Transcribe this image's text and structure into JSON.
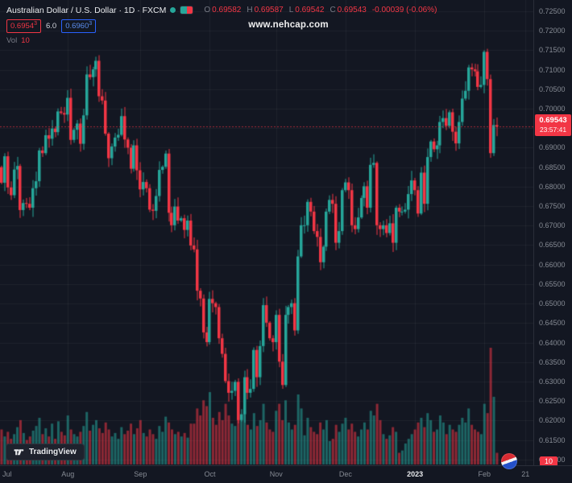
{
  "legend": {
    "title": "Australian Dollar / U.S. Dollar · 1D · FXCM",
    "o_label": "O",
    "o": "0.69582",
    "h_label": "H",
    "h": "0.69587",
    "l_label": "L",
    "l": "0.69542",
    "c_label": "C",
    "c": "0.69543",
    "change": "-0.00039 (-0.06%)",
    "bid": "0.6954",
    "bid_sup": "3",
    "spread": "6.0",
    "ask": "0.6960",
    "ask_sup": "3",
    "vol_label": "Vol",
    "vol_value": "10"
  },
  "ui": {
    "watermark": "www.nehcap.com",
    "tv_label": "TradingView",
    "price_badge": {
      "price": "0.69543",
      "countdown": "23:57:41"
    },
    "volume_badge": "10"
  },
  "colors": {
    "up": "#26a69a",
    "down": "#f23645",
    "bg": "#131722",
    "axis_text": "#868b94",
    "accent_blue": "#2962ff",
    "grid": "rgba(255,255,255,0.05)"
  },
  "chart_data": {
    "type": "candlestick",
    "title": "AUD/USD · 1D · FXCM with volume",
    "price_axis_labels": [
      "0.72500",
      "0.72000",
      "0.71500",
      "0.71000",
      "0.70500",
      "0.70000",
      "0.69500",
      "0.69000",
      "0.68500",
      "0.68000",
      "0.67500",
      "0.67000",
      "0.66500",
      "0.66000",
      "0.65500",
      "0.65000",
      "0.64500",
      "0.64000",
      "0.63500",
      "0.63000",
      "0.62500",
      "0.62000",
      "0.61500",
      "0.61000"
    ],
    "y_range": [
      0.6085,
      0.7279
    ],
    "time_labels": [
      {
        "t": "Jul",
        "i": 0
      },
      {
        "t": "Aug",
        "i": 21
      },
      {
        "t": "Sep",
        "i": 44
      },
      {
        "t": "Oct",
        "i": 66
      },
      {
        "t": "Nov",
        "i": 87
      },
      {
        "t": "Dec",
        "i": 109
      },
      {
        "t": "2023",
        "i": 131,
        "bold": true
      },
      {
        "t": "Feb",
        "i": 153
      },
      {
        "t": "21",
        "i": 166
      }
    ],
    "total_slots": 169,
    "first_open": 0.685,
    "closes": [
      0.681,
      0.6878,
      0.6798,
      0.6778,
      0.6844,
      0.6853,
      0.674,
      0.6758,
      0.6756,
      0.6746,
      0.6796,
      0.6814,
      0.6893,
      0.6886,
      0.6932,
      0.6923,
      0.6949,
      0.694,
      0.6993,
      0.6989,
      0.6985,
      0.7028,
      0.692,
      0.6946,
      0.6962,
      0.691,
      0.6983,
      0.7088,
      0.7081,
      0.7101,
      0.7123,
      0.7032,
      0.7021,
      0.6936,
      0.6873,
      0.6903,
      0.6926,
      0.6933,
      0.6981,
      0.6921,
      0.69,
      0.6846,
      0.6906,
      0.6842,
      0.6793,
      0.6812,
      0.6796,
      0.6741,
      0.6738,
      0.6776,
      0.6843,
      0.6851,
      0.6885,
      0.6733,
      0.6701,
      0.6749,
      0.6713,
      0.6719,
      0.6689,
      0.6713,
      0.6649,
      0.6639,
      0.6533,
      0.6513,
      0.6426,
      0.6401,
      0.6512,
      0.6501,
      0.6491,
      0.6411,
      0.6371,
      0.6301,
      0.6271,
      0.6276,
      0.6299,
      0.6201,
      0.6216,
      0.6311,
      0.6271,
      0.6281,
      0.6381,
      0.6311,
      0.6391,
      0.6496,
      0.6451,
      0.6411,
      0.6401,
      0.6471,
      0.6351,
      0.6291,
      0.6471,
      0.6491,
      0.6501,
      0.6431,
      0.6621,
      0.6701,
      0.6701,
      0.6761,
      0.6736,
      0.6686,
      0.6671,
      0.6606,
      0.6646,
      0.6736,
      0.6766,
      0.6756,
      0.6656,
      0.6686,
      0.6791,
      0.6811,
      0.6791,
      0.6701,
      0.6691,
      0.6721,
      0.6771,
      0.6801,
      0.6746,
      0.6856,
      0.6861,
      0.6701,
      0.6691,
      0.6701,
      0.6681,
      0.6706,
      0.6656,
      0.6746,
      0.6736,
      0.6736,
      0.6741,
      0.6781,
      0.6816,
      0.6791,
      0.6731,
      0.6836,
      0.6756,
      0.6876,
      0.6916,
      0.6896,
      0.6906,
      0.6966,
      0.6976,
      0.6956,
      0.6991,
      0.6941,
      0.6911,
      0.6966,
      0.7026,
      0.7046,
      0.7106,
      0.7101,
      0.7096,
      0.7056,
      0.7061,
      0.7146,
      0.7076,
      0.6886,
      0.6958,
      0.69543
    ],
    "volumes": [
      30,
      24,
      28,
      22,
      26,
      32,
      38,
      27,
      21,
      24,
      29,
      33,
      40,
      26,
      31,
      24,
      35,
      22,
      37,
      28,
      25,
      42,
      30,
      26,
      24,
      28,
      33,
      45,
      29,
      34,
      38,
      31,
      27,
      36,
      30,
      24,
      27,
      22,
      32,
      26,
      29,
      35,
      26,
      31,
      38,
      27,
      24,
      30,
      26,
      22,
      33,
      28,
      41,
      36,
      30,
      26,
      28,
      24,
      27,
      23,
      35,
      35,
      48,
      42,
      55,
      50,
      62,
      40,
      34,
      45,
      38,
      52,
      42,
      35,
      33,
      58,
      38,
      46,
      34,
      30,
      44,
      33,
      38,
      52,
      36,
      30,
      28,
      46,
      52,
      38,
      55,
      36,
      30,
      34,
      60,
      48,
      25,
      40,
      32,
      28,
      26,
      36,
      30,
      38,
      20,
      22,
      34,
      28,
      35,
      40,
      30,
      35,
      28,
      24,
      30,
      36,
      30,
      46,
      42,
      52,
      38,
      26,
      22,
      25,
      32,
      28,
      10,
      12,
      18,
      22,
      26,
      30,
      36,
      40,
      32,
      44,
      38,
      28,
      30,
      42,
      36,
      26,
      34,
      30,
      28,
      34,
      40,
      36,
      48,
      34,
      30,
      28,
      26,
      52,
      44,
      100,
      58,
      10
    ],
    "last_bar": {
      "open": 0.69582,
      "high": 0.69587,
      "low": 0.69542,
      "close": 0.69543
    }
  }
}
